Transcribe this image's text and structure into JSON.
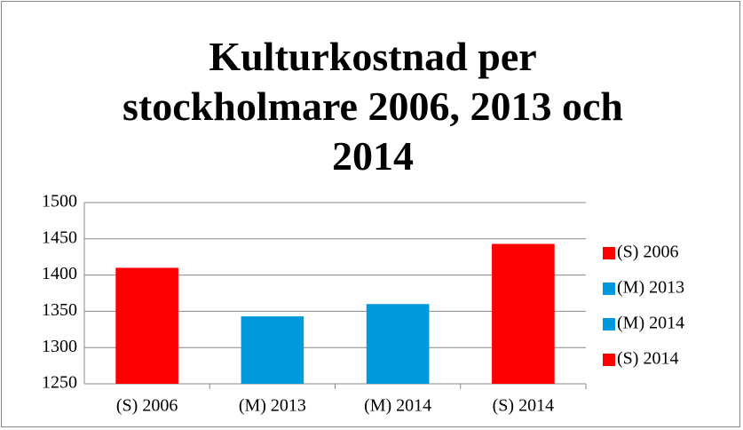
{
  "chart_data": {
    "type": "bar",
    "title": "Kulturkostnad per stockholmare 2006, 2013 och 2014",
    "categories": [
      "(S) 2006",
      "(M) 2013",
      "(M) 2014",
      "(S) 2014"
    ],
    "values": [
      1410,
      1343,
      1360,
      1443
    ],
    "colors": [
      "#ff0000",
      "#0099dd",
      "#0099dd",
      "#ff0000"
    ],
    "ylim": [
      1250,
      1500
    ],
    "yticks": [
      1250,
      1300,
      1350,
      1400,
      1450,
      1500
    ],
    "grid": true,
    "legend": "right"
  }
}
